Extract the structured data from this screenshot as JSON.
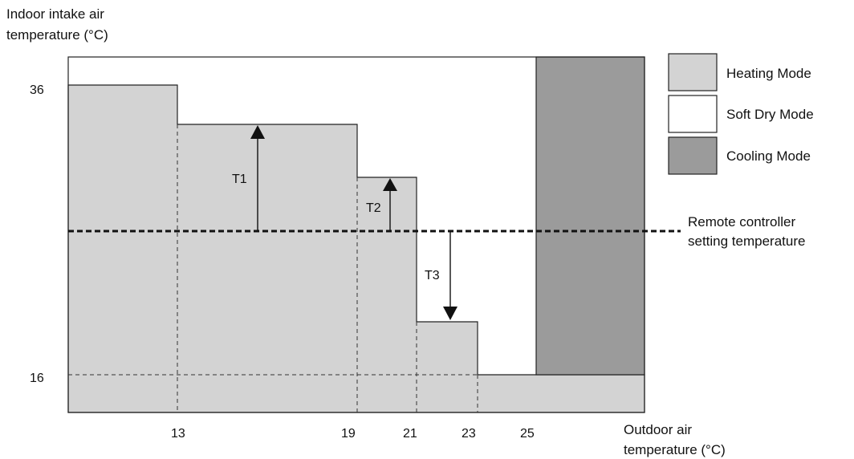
{
  "title": "",
  "y_axis": {
    "label_lines": [
      "Indoor intake air",
      "temperature (°C)"
    ],
    "ticks": [
      {
        "value": 36,
        "label": "36"
      },
      {
        "value": 16,
        "label": "16"
      }
    ]
  },
  "x_axis": {
    "label_lines": [
      "Outdoor air",
      "temperature (°C)"
    ],
    "ticks": [
      {
        "value": 13,
        "label": "13"
      },
      {
        "value": 19,
        "label": "19"
      },
      {
        "value": 21,
        "label": "21"
      },
      {
        "value": 23,
        "label": "23"
      },
      {
        "value": 25,
        "label": "25"
      }
    ]
  },
  "regions": {
    "heating_color": "#d3d3d3",
    "soft_dry_color": "#ffffff",
    "cooling_color": "#9b9b9b"
  },
  "legend": {
    "placement": "right",
    "items": [
      {
        "label": "Heating Mode",
        "color": "#d3d3d3"
      },
      {
        "label": "Soft Dry Mode",
        "color": "#ffffff"
      },
      {
        "label": "Cooling Mode",
        "color": "#9b9b9b"
      }
    ]
  },
  "setting_line": {
    "label_lines": [
      "Remote controller",
      "setting temperature"
    ]
  },
  "differences": [
    {
      "label": "T1",
      "direction": "up"
    },
    {
      "label": "T2",
      "direction": "up"
    },
    {
      "label": "T3",
      "direction": "down"
    }
  ]
}
